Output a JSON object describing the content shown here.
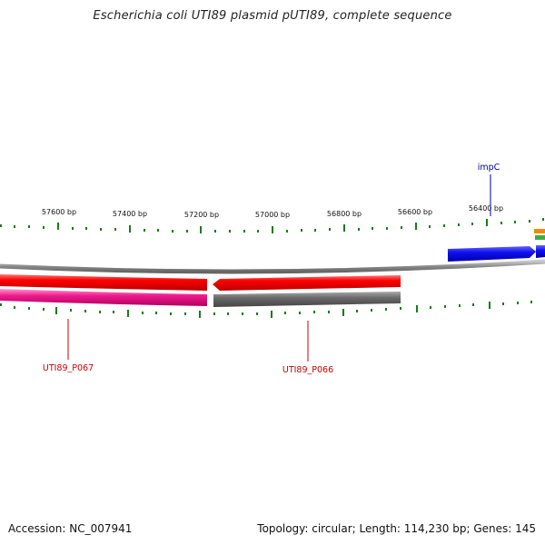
{
  "title": "Escherichia coli UTI89 plasmid pUTI89, complete sequence",
  "footer": {
    "accession": "Accession: NC_007941",
    "summary": "Topology: circular; Length: 114,230 bp; Genes: 145"
  },
  "ticks": [
    {
      "label": "57600 bp"
    },
    {
      "label": "57400 bp"
    },
    {
      "label": "57200 bp"
    },
    {
      "label": "57000 bp"
    },
    {
      "label": "56800 bp"
    },
    {
      "label": "56600 bp"
    },
    {
      "label": "56400 bp"
    }
  ],
  "genes": [
    {
      "label": "impC",
      "color": "#00008b"
    },
    {
      "label": "UTI89_P067",
      "color": "#cc0000"
    },
    {
      "label": "UTI89_P066",
      "color": "#cc0000"
    }
  ],
  "colors": {
    "backbone": "#8a8a8a",
    "forward_gene": "#1a1aff",
    "reverse_gene": "#ee0000",
    "pseudo_gene": "#666666",
    "pink_gene": "#ee1a8c",
    "tick": "#1a7a1a"
  }
}
